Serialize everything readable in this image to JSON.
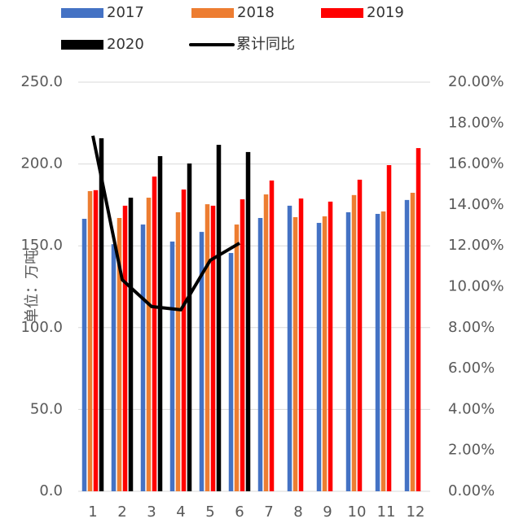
{
  "chart_data": {
    "type": "bar",
    "categories": [
      "1",
      "2",
      "3",
      "4",
      "5",
      "6",
      "7",
      "8",
      "9",
      "10",
      "11",
      "12"
    ],
    "series": [
      {
        "name": "2017",
        "color": "#4472c4",
        "values": [
          166.5,
          151,
          163,
          152.6,
          158.5,
          145.6,
          167,
          174.5,
          164,
          170.5,
          169.5,
          178
        ]
      },
      {
        "name": "2018",
        "color": "#ed7d31",
        "values": [
          183.4,
          167,
          179.4,
          170.5,
          175.4,
          163,
          181.4,
          167.5,
          168,
          181,
          171,
          182.4
        ]
      },
      {
        "name": "2019",
        "color": "#ff0000",
        "values": [
          184,
          174.5,
          192.3,
          184.4,
          174.5,
          178.4,
          189.9,
          178.9,
          177,
          190.4,
          199.3,
          209.7
        ]
      },
      {
        "name": "2020",
        "color": "#000000",
        "values": [
          215.7,
          179.4,
          204.8,
          200.3,
          211.7,
          207.3,
          null,
          null,
          null,
          null,
          null,
          null
        ]
      },
      {
        "name": "累计同比",
        "color": "#000000",
        "type": "line",
        "axis": "y2",
        "values": [
          17.38,
          10.34,
          9.03,
          8.87,
          11.29,
          12.13,
          null,
          null,
          null,
          null,
          null,
          null
        ]
      }
    ],
    "y_label": "单位：万吨",
    "ylim": [
      0,
      250
    ],
    "yticks": [
      {
        "value": 0,
        "label": "0.0"
      },
      {
        "value": 50,
        "label": "50.0"
      },
      {
        "value": 100,
        "label": "100.0"
      },
      {
        "value": 150,
        "label": "150.0"
      },
      {
        "value": 200,
        "label": "200.0"
      },
      {
        "value": 250,
        "label": "250.0"
      }
    ],
    "y2lim": [
      0,
      20
    ],
    "y2ticks": [
      {
        "value": 0,
        "label": "0.00%"
      },
      {
        "value": 2,
        "label": "2.00%"
      },
      {
        "value": 4,
        "label": "4.00%"
      },
      {
        "value": 6,
        "label": "6.00%"
      },
      {
        "value": 8,
        "label": "8.00%"
      },
      {
        "value": 10,
        "label": "10.00%"
      },
      {
        "value": 12,
        "label": "12.00%"
      },
      {
        "value": 14,
        "label": "14.00%"
      },
      {
        "value": 16,
        "label": "16.00%"
      },
      {
        "value": 18,
        "label": "18.00%"
      },
      {
        "value": 20,
        "label": "20.00%"
      }
    ],
    "grid": true
  }
}
